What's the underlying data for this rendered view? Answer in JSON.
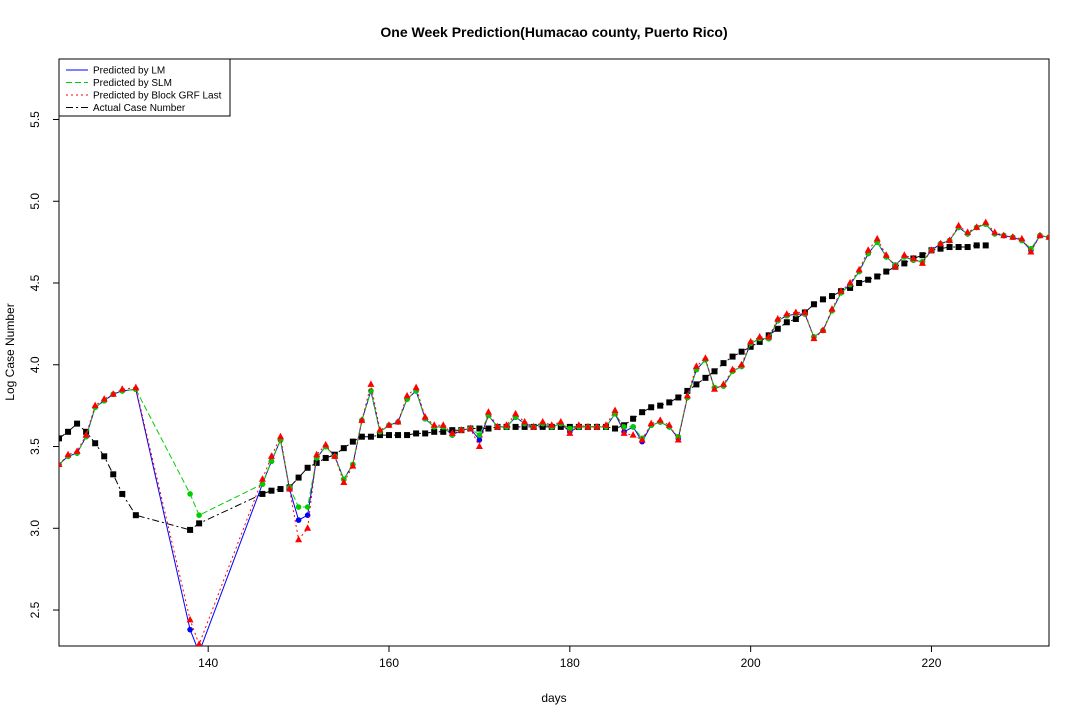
{
  "chart_data": {
    "type": "line",
    "title": "One Week Prediction(Humacao county, Puerto Rico)",
    "xlabel": "days",
    "ylabel": "Log Case Number",
    "xlim": [
      123.5,
      233
    ],
    "ylim": [
      2.28,
      5.87
    ],
    "x_ticks": [
      140,
      160,
      180,
      200,
      220
    ],
    "y_ticks": [
      2.5,
      3.0,
      3.5,
      4.0,
      4.5,
      5.0,
      5.5
    ],
    "legend_position": "top-left",
    "legend": [
      {
        "label": "Predicted by LM",
        "color": "#0000ff",
        "dash": "solid"
      },
      {
        "label": "Predicted by SLM",
        "color": "#00cd00",
        "dash": "dashed"
      },
      {
        "label": "Predicted by Block GRF Last",
        "color": "#ff0000",
        "dash": "dotted"
      },
      {
        "label": "Actual Case Number",
        "color": "#000000",
        "dash": "dashdot"
      }
    ],
    "series": [
      {
        "name": "Actual Case Number",
        "color": "#000000",
        "marker": "square",
        "x": [
          123.5,
          124.5,
          125.5,
          126.5,
          127.5,
          128.5,
          129.5,
          130.5,
          132,
          138,
          139,
          146,
          147,
          148,
          149,
          150,
          151,
          152,
          153,
          154,
          155,
          156,
          157,
          158,
          159,
          160,
          161,
          162,
          163,
          164,
          165,
          166,
          167,
          168,
          169,
          170,
          171,
          172,
          173,
          174,
          175,
          176,
          177,
          178,
          179,
          180,
          181,
          182,
          183,
          184,
          185,
          186,
          187,
          188,
          189,
          190,
          191,
          192,
          193,
          194,
          195,
          196,
          197,
          198,
          199,
          200,
          201,
          202,
          203,
          204,
          205,
          206,
          207,
          208,
          209,
          210,
          211,
          212,
          213,
          214,
          215,
          216,
          217,
          218,
          219,
          220,
          221,
          222,
          223,
          224,
          225,
          226
        ],
        "y": [
          3.55,
          3.59,
          3.64,
          3.59,
          3.52,
          3.44,
          3.33,
          3.21,
          3.08,
          2.99,
          3.03,
          3.21,
          3.23,
          3.24,
          3.25,
          3.31,
          3.37,
          3.4,
          3.43,
          3.45,
          3.49,
          3.53,
          3.56,
          3.56,
          3.57,
          3.57,
          3.57,
          3.57,
          3.58,
          3.58,
          3.59,
          3.59,
          3.6,
          3.6,
          3.61,
          3.61,
          3.61,
          3.62,
          3.62,
          3.62,
          3.62,
          3.62,
          3.62,
          3.62,
          3.62,
          3.62,
          3.62,
          3.62,
          3.62,
          3.62,
          3.61,
          3.63,
          3.67,
          3.71,
          3.74,
          3.75,
          3.77,
          3.8,
          3.84,
          3.88,
          3.92,
          3.96,
          4.01,
          4.05,
          4.08,
          4.11,
          4.14,
          4.18,
          4.22,
          4.26,
          4.28,
          4.32,
          4.37,
          4.4,
          4.42,
          4.45,
          4.47,
          4.5,
          4.52,
          4.54,
          4.57,
          4.6,
          4.62,
          4.65,
          4.67,
          4.7,
          4.71,
          4.72,
          4.72,
          4.72,
          4.73,
          4.73
        ]
      },
      {
        "name": "Predicted by LM",
        "color": "#0000ff",
        "marker": "circle",
        "x": [
          123.5,
          124.5,
          125.5,
          126.5,
          127.5,
          128.5,
          129.5,
          130.5,
          132,
          138,
          139,
          146,
          147,
          148,
          149,
          150,
          151,
          152,
          153,
          154,
          155,
          156,
          157,
          158,
          159,
          160,
          161,
          162,
          163,
          164,
          165,
          166,
          167,
          168,
          169,
          170,
          171,
          172,
          173,
          174,
          175,
          176,
          177,
          178,
          179,
          180,
          181,
          182,
          183,
          184,
          185,
          186,
          187,
          188,
          189,
          190,
          191,
          192,
          193,
          194,
          195,
          196,
          197,
          198,
          199,
          200,
          201,
          202,
          203,
          204,
          205,
          206,
          207,
          208,
          209,
          210,
          211,
          212,
          213,
          214,
          215,
          216,
          217,
          218,
          219,
          220,
          221,
          222,
          223,
          224,
          225,
          226,
          227,
          228,
          229,
          230,
          231,
          232,
          233
        ],
        "y": [
          3.39,
          3.44,
          3.46,
          3.56,
          3.74,
          3.78,
          3.82,
          3.84,
          3.85,
          2.38,
          2.24,
          3.27,
          3.41,
          3.54,
          3.24,
          3.05,
          3.08,
          3.43,
          3.5,
          3.44,
          3.3,
          3.39,
          3.66,
          3.84,
          3.59,
          3.63,
          3.65,
          3.79,
          3.84,
          3.67,
          3.62,
          3.62,
          3.57,
          3.6,
          3.61,
          3.54,
          3.69,
          3.62,
          3.62,
          3.68,
          3.64,
          3.62,
          3.64,
          3.62,
          3.64,
          3.59,
          3.62,
          3.62,
          3.62,
          3.62,
          3.7,
          3.59,
          3.62,
          3.53,
          3.63,
          3.65,
          3.62,
          3.55,
          3.8,
          3.97,
          4.03,
          3.86,
          3.87,
          3.96,
          3.99,
          4.13,
          4.16,
          4.16,
          4.27,
          4.3,
          4.31,
          4.31,
          4.17,
          4.21,
          4.33,
          4.44,
          4.49,
          4.57,
          4.68,
          4.75,
          4.66,
          4.61,
          4.66,
          4.64,
          4.63,
          4.7,
          4.74,
          4.76,
          4.84,
          4.8,
          4.84,
          4.86,
          4.8,
          4.79,
          4.78,
          4.76,
          4.7,
          4.79,
          4.78
        ]
      },
      {
        "name": "Predicted by SLM",
        "color": "#00cd00",
        "marker": "circle",
        "x": [
          123.5,
          124.5,
          125.5,
          126.5,
          127.5,
          128.5,
          129.5,
          130.5,
          132,
          138,
          139,
          146,
          147,
          148,
          149,
          150,
          151,
          152,
          153,
          154,
          155,
          156,
          157,
          158,
          159,
          160,
          161,
          162,
          163,
          164,
          165,
          166,
          167,
          168,
          169,
          170,
          171,
          172,
          173,
          174,
          175,
          176,
          177,
          178,
          179,
          180,
          181,
          182,
          183,
          184,
          185,
          186,
          187,
          188,
          189,
          190,
          191,
          192,
          193,
          194,
          195,
          196,
          197,
          198,
          199,
          200,
          201,
          202,
          203,
          204,
          205,
          206,
          207,
          208,
          209,
          210,
          211,
          212,
          213,
          214,
          215,
          216,
          217,
          218,
          219,
          220,
          221,
          222,
          223,
          224,
          225,
          226,
          227,
          228,
          229,
          230,
          231,
          232,
          233
        ],
        "y": [
          3.39,
          3.44,
          3.46,
          3.56,
          3.74,
          3.78,
          3.82,
          3.84,
          3.85,
          3.21,
          3.08,
          3.27,
          3.41,
          3.54,
          3.25,
          3.13,
          3.13,
          3.43,
          3.5,
          3.44,
          3.3,
          3.39,
          3.66,
          3.84,
          3.59,
          3.63,
          3.65,
          3.79,
          3.84,
          3.67,
          3.62,
          3.62,
          3.57,
          3.6,
          3.61,
          3.57,
          3.69,
          3.62,
          3.62,
          3.68,
          3.64,
          3.62,
          3.64,
          3.62,
          3.64,
          3.61,
          3.62,
          3.62,
          3.62,
          3.62,
          3.7,
          3.62,
          3.62,
          3.55,
          3.63,
          3.65,
          3.62,
          3.56,
          3.8,
          3.97,
          4.03,
          3.86,
          3.87,
          3.96,
          3.99,
          4.13,
          4.16,
          4.16,
          4.27,
          4.3,
          4.31,
          4.31,
          4.17,
          4.21,
          4.33,
          4.44,
          4.49,
          4.57,
          4.68,
          4.75,
          4.66,
          4.61,
          4.66,
          4.64,
          4.63,
          4.7,
          4.74,
          4.76,
          4.84,
          4.8,
          4.84,
          4.86,
          4.8,
          4.79,
          4.78,
          4.76,
          4.71,
          4.79,
          4.78
        ]
      },
      {
        "name": "Predicted by Block GRF Last",
        "color": "#ff0000",
        "marker": "triangle",
        "x": [
          123.5,
          124.5,
          125.5,
          126.5,
          127.5,
          128.5,
          129.5,
          130.5,
          132,
          138,
          139,
          146,
          147,
          148,
          149,
          150,
          151,
          152,
          153,
          154,
          155,
          156,
          157,
          158,
          159,
          160,
          161,
          162,
          163,
          164,
          165,
          166,
          167,
          168,
          169,
          170,
          171,
          172,
          173,
          174,
          175,
          176,
          177,
          178,
          179,
          180,
          181,
          182,
          183,
          184,
          185,
          186,
          187,
          188,
          189,
          190,
          191,
          192,
          193,
          194,
          195,
          196,
          197,
          198,
          199,
          200,
          201,
          202,
          203,
          204,
          205,
          206,
          207,
          208,
          209,
          210,
          211,
          212,
          213,
          214,
          215,
          216,
          217,
          218,
          219,
          220,
          221,
          222,
          223,
          224,
          225,
          226,
          227,
          228,
          229,
          230,
          231,
          232,
          233
        ],
        "y": [
          3.39,
          3.45,
          3.47,
          3.57,
          3.75,
          3.79,
          3.82,
          3.85,
          3.86,
          2.44,
          2.29,
          3.3,
          3.44,
          3.56,
          3.24,
          2.93,
          3.0,
          3.45,
          3.51,
          3.44,
          3.28,
          3.38,
          3.66,
          3.88,
          3.6,
          3.63,
          3.65,
          3.81,
          3.86,
          3.68,
          3.63,
          3.63,
          3.58,
          3.6,
          3.61,
          3.5,
          3.71,
          3.62,
          3.63,
          3.7,
          3.65,
          3.62,
          3.65,
          3.63,
          3.65,
          3.58,
          3.63,
          3.62,
          3.62,
          3.63,
          3.72,
          3.58,
          3.57,
          3.54,
          3.64,
          3.66,
          3.63,
          3.54,
          3.81,
          3.99,
          4.04,
          3.85,
          3.88,
          3.97,
          4.0,
          4.14,
          4.17,
          4.17,
          4.28,
          4.31,
          4.32,
          4.32,
          4.16,
          4.21,
          4.34,
          4.45,
          4.5,
          4.58,
          4.7,
          4.77,
          4.67,
          4.6,
          4.67,
          4.65,
          4.62,
          4.7,
          4.74,
          4.76,
          4.85,
          4.81,
          4.84,
          4.87,
          4.81,
          4.79,
          4.78,
          4.77,
          4.69,
          4.79,
          4.78
        ]
      }
    ]
  }
}
